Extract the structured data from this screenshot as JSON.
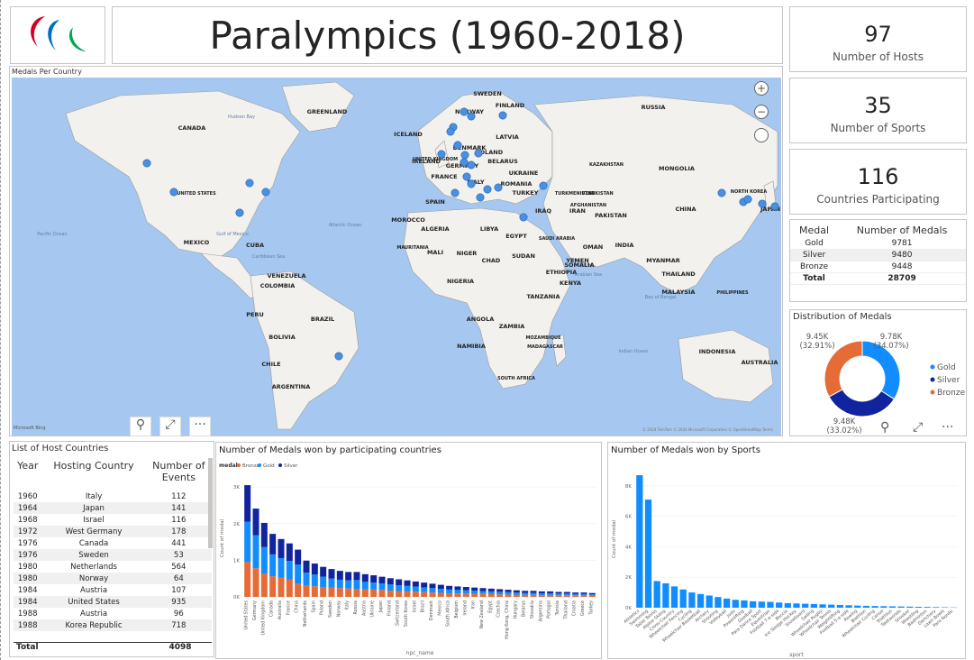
{
  "title": "Paralympics (1960-2018)",
  "kpis": [
    {
      "value": "97",
      "label": "Number of Hosts"
    },
    {
      "value": "35",
      "label": "Number of Sports"
    },
    {
      "value": "116",
      "label": "Countries Participating"
    }
  ],
  "map": {
    "title": "Medals Per Country",
    "zoom_in": "+",
    "zoom_out": "−",
    "attribution": "© 2024 TomTom © 2024 Microsoft Corporation © OpenStreetMap Terms",
    "bing": "Microsoft Bing",
    "labels": [
      "CANADA",
      "UNITED STATES",
      "MEXICO",
      "BRAZIL",
      "PERU",
      "BOLIVIA",
      "CHILE",
      "ARGENTINA",
      "COLOMBIA",
      "VENEZUELA",
      "RUSSIA",
      "KAZAKHSTAN",
      "MONGOLIA",
      "CHINA",
      "INDIA",
      "IRAN",
      "ALGERIA",
      "LIBYA",
      "EGYPT",
      "NIGER",
      "CHAD",
      "SUDAN",
      "ETHIOPIA",
      "SOUTH AFRICA",
      "AUSTRALIA",
      "INDONESIA",
      "NORTH KOREA",
      "JAPAN",
      "SWEDEN",
      "FINLAND",
      "NORWAY",
      "POLAND",
      "UKRAINE",
      "SPAIN",
      "TURKEY",
      "IRAQ",
      "SAUDI ARABIA",
      "MOROCCO",
      "NIGERIA",
      "MALI",
      "MAURITANIA",
      "ANGOLA",
      "NAMIBIA",
      "MADAGASCAR",
      "ZAMBIA",
      "MOZAMBIQUE",
      "TANZANIA",
      "KENYA",
      "SOMALIA",
      "YEMEN",
      "OMAN",
      "PAKISTAN",
      "AFGHANISTAN",
      "TURKMENISTAN",
      "UZBEKISTAN",
      "THAILAND",
      "MALAYSIA",
      "PHILIPPINES",
      "MYANMAR",
      "CUBA",
      "GREENLAND",
      "UNITED KINGDOM",
      "FRANCE",
      "ITALY",
      "GERMANY",
      "ROMANIA",
      "BELARUS",
      "LATVIA",
      "DENMARK",
      "IRELAND",
      "ICELAND",
      "Atlantic Ocean",
      "Pacific Ocean",
      "Indian Ocean",
      "Hudson Bay",
      "Gulf of Mexico",
      "Arabian Sea",
      "Bay of Bengal",
      "Caribbean Sea"
    ]
  },
  "medal_table": {
    "headers": [
      "Medal",
      "Number of Medals"
    ],
    "rows": [
      {
        "medal": "Gold",
        "count": "9781"
      },
      {
        "medal": "Silver",
        "count": "9480"
      },
      {
        "medal": "Bronze",
        "count": "9448"
      }
    ],
    "total_label": "Total",
    "total": "28709"
  },
  "donut": {
    "title": "Distribution of Medals",
    "slices": [
      {
        "name": "Gold",
        "value": 9781,
        "label": "9.78K",
        "pct": "(34.07%)",
        "color": "#118dff"
      },
      {
        "name": "Silver",
        "value": 9480,
        "label": "9.48K",
        "pct": "(33.02%)",
        "color": "#12239e"
      },
      {
        "name": "Bronze",
        "value": 9448,
        "label": "9.45K",
        "pct": "(32.91%)",
        "color": "#e66c37"
      }
    ]
  },
  "host_table": {
    "title": "List of Host Countries",
    "headers": [
      "Year",
      "Hosting Country",
      "Number of Events"
    ],
    "rows": [
      [
        "1960",
        "Italy",
        "112"
      ],
      [
        "1964",
        "Japan",
        "141"
      ],
      [
        "1968",
        "Israel",
        "116"
      ],
      [
        "1972",
        "West Germany",
        "178"
      ],
      [
        "1976",
        "Canada",
        "441"
      ],
      [
        "1976",
        "Sweden",
        "53"
      ],
      [
        "1980",
        "Netherlands",
        "564"
      ],
      [
        "1980",
        "Norway",
        "64"
      ],
      [
        "1984",
        "Austria",
        "107"
      ],
      [
        "1984",
        "United States",
        "935"
      ],
      [
        "1988",
        "Austria",
        "96"
      ],
      [
        "1988",
        "Korea Republic",
        "718"
      ]
    ],
    "total_label": "Total",
    "total": "4098"
  },
  "chart_data": [
    {
      "type": "bar",
      "stacked": true,
      "title": "Number of Medals won by participating countries",
      "legend_title": "medal",
      "xlabel": "npc_name",
      "ylabel": "Count of medal",
      "yticks": [
        "0K",
        "1K",
        "2K",
        "3K"
      ],
      "ylim": [
        0,
        3200
      ],
      "categories": [
        "United States",
        "Germany",
        "United Kingdom",
        "Canada",
        "Australia",
        "France",
        "China",
        "Netherlands",
        "Spain",
        "Poland",
        "Sweden",
        "Norway",
        "Italy",
        "Russia",
        "Austria",
        "Ukraine",
        "Japan",
        "Finland",
        "Switzerland",
        "South Korea",
        "Israel",
        "Brazil",
        "Denmark",
        "Mexico",
        "South Africa",
        "Belgium",
        "Ireland",
        "Iran",
        "New Zealand",
        "Egypt",
        "Czechia",
        "Hong Kong, China",
        "Hungary",
        "Belarus",
        "Slovakia",
        "Argentina",
        "Portugal",
        "Tunisia",
        "Thailand",
        "Croatia",
        "Greece",
        "Turkey"
      ],
      "series": [
        {
          "name": "Bronze",
          "color": "#e66c37",
          "values": [
            950,
            780,
            640,
            560,
            520,
            480,
            360,
            320,
            290,
            270,
            250,
            240,
            230,
            220,
            210,
            200,
            190,
            170,
            160,
            150,
            140,
            130,
            120,
            110,
            100,
            95,
            90,
            85,
            80,
            75,
            70,
            65,
            60,
            55,
            55,
            50,
            50,
            45,
            45,
            40,
            40,
            35
          ]
        },
        {
          "name": "Gold",
          "color": "#118dff",
          "values": [
            1100,
            900,
            720,
            600,
            540,
            500,
            520,
            340,
            320,
            280,
            250,
            230,
            220,
            240,
            200,
            190,
            180,
            170,
            160,
            150,
            140,
            130,
            120,
            110,
            100,
            95,
            90,
            85,
            80,
            75,
            70,
            65,
            60,
            55,
            55,
            50,
            50,
            45,
            45,
            40,
            40,
            35
          ]
        },
        {
          "name": "Silver",
          "color": "#12239e",
          "values": [
            1000,
            730,
            660,
            560,
            520,
            480,
            410,
            330,
            300,
            270,
            260,
            240,
            230,
            220,
            210,
            200,
            180,
            170,
            160,
            150,
            140,
            130,
            120,
            110,
            100,
            95,
            90,
            85,
            80,
            75,
            70,
            65,
            60,
            55,
            55,
            50,
            50,
            45,
            45,
            40,
            40,
            35
          ]
        }
      ]
    },
    {
      "type": "bar",
      "title": "Number of Medals won by Sports",
      "xlabel": "sport",
      "ylabel": "Count of medal",
      "yticks": [
        "0K",
        "2K",
        "4K",
        "6K",
        "8K"
      ],
      "ylim": [
        0,
        9000
      ],
      "color": "#118dff",
      "categories": [
        "Athletics",
        "Swimming",
        "Table Tennis",
        "Alpine Skiing",
        "Cross-Country",
        "Wheelchair Fencing",
        "Cycling",
        "Wheelchair Basketball",
        "Archery",
        "Shooting",
        "Volleyball",
        "Judo",
        "Powerlifting",
        "Goalball",
        "Para Dance Sport",
        "Equestrian",
        "Football 7-a-side",
        "Boccia",
        "Ice Sledge Hockey",
        "Snowboard",
        "Sailing",
        "Wheelchair Rugby",
        "Wheelchair Tennis",
        "Weightlifting",
        "Football 5-a-side",
        "Rowing",
        "Biathlon",
        "Wheelchair Curling",
        "Canoe",
        "Triathlon",
        "Taekwondo",
        "Snooker",
        "Wrestling",
        "Badminton",
        "Dartchery",
        "Lawn Bowls",
        "Para Nordic"
      ],
      "values": [
        8700,
        7100,
        1750,
        1600,
        1400,
        1200,
        1000,
        900,
        800,
        700,
        600,
        520,
        480,
        420,
        400,
        380,
        340,
        300,
        280,
        260,
        240,
        220,
        200,
        180,
        160,
        140,
        120,
        110,
        100,
        90,
        80,
        70,
        60,
        50,
        40,
        30,
        20
      ]
    }
  ],
  "buttons": {
    "filter": "⚲",
    "expand": "⤢",
    "more": "···"
  }
}
